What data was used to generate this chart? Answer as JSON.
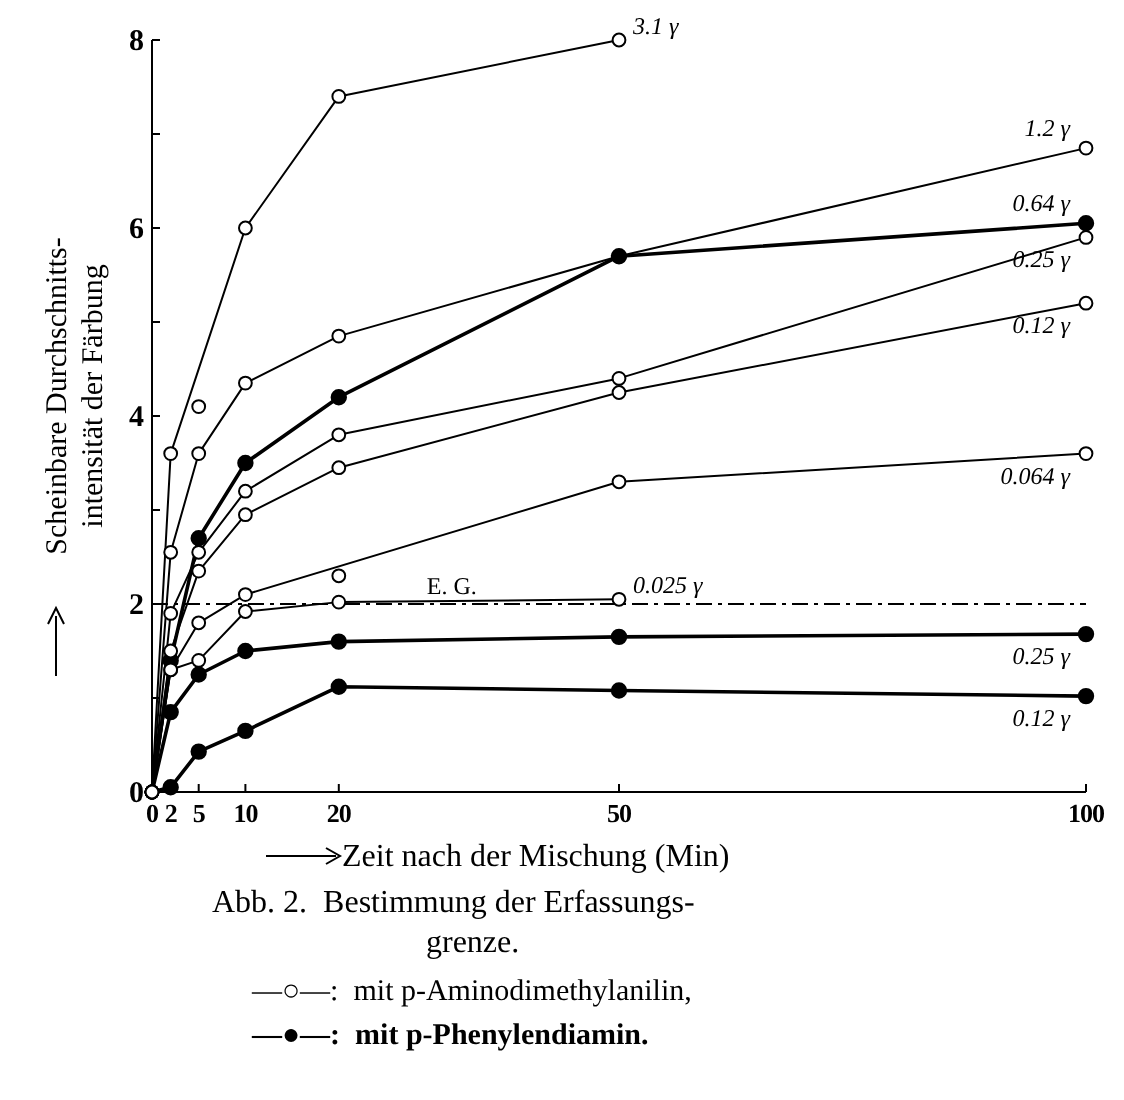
{
  "chart_data": {
    "type": "line",
    "ylabel": "Scheinbare Durchschnitts-\nintensität der Färbung",
    "xlabel": "Zeit nach der Mischung (Min)",
    "x": [
      0,
      2,
      5,
      10,
      20,
      50,
      100
    ],
    "xlim": [
      0,
      100
    ],
    "xticks": [
      0,
      2,
      5,
      10,
      20,
      50,
      100
    ],
    "ylim": [
      0,
      8
    ],
    "yticks": [
      0,
      {
        "value": 1,
        "label": null
      },
      2,
      {
        "value": 3,
        "label": null
      },
      4,
      {
        "value": 5,
        "label": null
      },
      6,
      {
        "value": 7,
        "label": null
      },
      8
    ],
    "marker": "circle",
    "line_style": "solid",
    "grid": false,
    "ref_lines": [
      {
        "axis": "y",
        "value": 2,
        "label": "E. G.",
        "line_style": "dashed",
        "color": "#000000"
      }
    ],
    "series": [
      {
        "name": "3.1 γ",
        "color": "#000000",
        "x": [
          0,
          2,
          10,
          20,
          50
        ],
        "values": [
          0,
          3.6,
          6.0,
          7.4,
          8.0
        ]
      },
      {
        "name": "1.2 γ",
        "color": "#000000",
        "values": [
          0,
          2.55,
          3.6,
          4.35,
          4.85,
          5.7,
          6.85
        ]
      },
      {
        "name": "0.64 γ",
        "color": "#000000",
        "colors": [
          "#ffffff",
          "#000000",
          "#000000",
          "#000000",
          "#000000",
          "#000000",
          "#000000"
        ],
        "values": [
          0,
          1.4,
          2.7,
          3.5,
          4.2,
          5.7,
          6.05
        ]
      },
      {
        "name": "0.25 γ",
        "color": "#000000",
        "values": [
          0,
          1.9,
          2.55,
          3.2,
          3.8,
          4.4,
          5.9
        ]
      },
      {
        "name": "0.12 γ",
        "color": "#000000",
        "values": [
          0,
          1.5,
          2.35,
          2.95,
          3.45,
          4.25,
          5.2
        ]
      },
      {
        "name": "0.064 γ",
        "color": "#000000",
        "x": [
          0,
          2,
          5,
          10,
          50,
          100
        ],
        "values": [
          0,
          1.3,
          1.8,
          2.1,
          3.3,
          3.6
        ]
      },
      {
        "name": "0.025 γ",
        "color": "#000000",
        "x": [
          0,
          2,
          5,
          10,
          20,
          50
        ],
        "values": [
          0,
          1.3,
          1.4,
          1.92,
          2.02,
          2.05
        ]
      },
      {
        "name": "0.25 γ",
        "color": "#000000",
        "colors": [
          "#ffffff",
          "#000000",
          "#000000",
          "#000000",
          "#000000",
          "#000000",
          "#000000"
        ],
        "values": [
          0,
          0.85,
          1.25,
          1.5,
          1.6,
          1.65,
          1.68
        ]
      },
      {
        "name": "0.12 γ",
        "color": "#000000",
        "colors": [
          "#ffffff",
          "#000000",
          "#000000",
          "#000000",
          "#000000",
          "#000000",
          "#000000"
        ],
        "values": [
          0,
          0.05,
          0.43,
          0.65,
          1.12,
          1.08,
          1.02
        ]
      },
      {
        "type": "scatter",
        "color": "#000000",
        "x": [
          5,
          20
        ],
        "values": [
          4.1,
          2.3
        ]
      }
    ],
    "annotations": [
      "Abb. 2.  Bestimmung der Erfassungs-\ngrenze.",
      "—○—:  mit p-Aminodimethylanilin,",
      "—●—:  mit p-Phenylendiamin."
    ]
  }
}
